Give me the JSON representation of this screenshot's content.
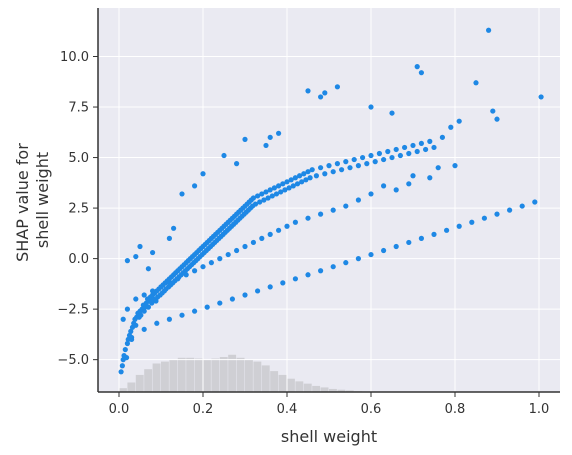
{
  "chart_data": {
    "type": "scatter",
    "title": "",
    "xlabel": "shell weight",
    "ylabel_line1": "SHAP value for",
    "ylabel_line2": "shell weight",
    "xlim": [
      -0.05,
      1.05
    ],
    "ylim": [
      -6.6,
      12.4
    ],
    "grid": true,
    "colors": {
      "background": "#eaeaf2",
      "grid": "#ffffff",
      "points": "#1e88e5",
      "histogram": "#cfcfd4",
      "axis": "#333333"
    },
    "x_ticks": [
      0.0,
      0.2,
      0.4,
      0.6,
      0.8,
      1.0
    ],
    "x_tick_labels": [
      "0.0",
      "0.2",
      "0.4",
      "0.6",
      "0.8",
      "1.0"
    ],
    "y_ticks": [
      -5.0,
      -2.5,
      0.0,
      2.5,
      5.0,
      7.5,
      10.0
    ],
    "y_tick_labels": [
      "−5.0",
      "−2.5",
      "0.0",
      "2.5",
      "5.0",
      "7.5",
      "10.0"
    ],
    "histogram": {
      "bin_starts": [
        0.0,
        0.02,
        0.04,
        0.06,
        0.08,
        0.1,
        0.12,
        0.14,
        0.16,
        0.18,
        0.2,
        0.22,
        0.24,
        0.26,
        0.28,
        0.3,
        0.32,
        0.34,
        0.36,
        0.38,
        0.4,
        0.42,
        0.44,
        0.46,
        0.48,
        0.5,
        0.52,
        0.54,
        0.56
      ],
      "bin_width": 0.02,
      "relative_heights": [
        0.1,
        0.25,
        0.45,
        0.6,
        0.75,
        0.8,
        0.85,
        0.9,
        0.9,
        0.88,
        0.85,
        0.88,
        0.92,
        0.98,
        0.9,
        0.85,
        0.8,
        0.7,
        0.55,
        0.45,
        0.35,
        0.28,
        0.22,
        0.16,
        0.12,
        0.08,
        0.06,
        0.04,
        0.02
      ]
    },
    "points": [
      [
        0.005,
        -5.6
      ],
      [
        0.008,
        -5.3
      ],
      [
        0.01,
        -5.0
      ],
      [
        0.012,
        -4.8
      ],
      [
        0.015,
        -4.5
      ],
      [
        0.018,
        -4.9
      ],
      [
        0.02,
        -4.2
      ],
      [
        0.022,
        -4.0
      ],
      [
        0.025,
        -3.8
      ],
      [
        0.028,
        -3.6
      ],
      [
        0.03,
        -3.9
      ],
      [
        0.032,
        -3.4
      ],
      [
        0.035,
        -3.2
      ],
      [
        0.038,
        -3.0
      ],
      [
        0.04,
        -3.3
      ],
      [
        0.042,
        -2.9
      ],
      [
        0.045,
        -2.7
      ],
      [
        0.048,
        -2.9
      ],
      [
        0.05,
        -2.6
      ],
      [
        0.052,
        -2.8
      ],
      [
        0.055,
        -2.5
      ],
      [
        0.058,
        -2.3
      ],
      [
        0.06,
        -2.6
      ],
      [
        0.062,
        -2.4
      ],
      [
        0.065,
        -2.2
      ],
      [
        0.068,
        -2.0
      ],
      [
        0.07,
        -2.4
      ],
      [
        0.072,
        -2.1
      ],
      [
        0.075,
        -1.9
      ],
      [
        0.078,
        -2.2
      ],
      [
        0.08,
        -1.8
      ],
      [
        0.082,
        -2.0
      ],
      [
        0.085,
        -1.7
      ],
      [
        0.088,
        -2.1
      ],
      [
        0.09,
        -1.6
      ],
      [
        0.092,
        -1.9
      ],
      [
        0.095,
        -1.5
      ],
      [
        0.098,
        -1.8
      ],
      [
        0.1,
        -1.4
      ],
      [
        0.103,
        -1.7
      ],
      [
        0.105,
        -1.3
      ],
      [
        0.108,
        -1.6
      ],
      [
        0.11,
        -1.2
      ],
      [
        0.112,
        -1.5
      ],
      [
        0.115,
        -1.1
      ],
      [
        0.118,
        -1.4
      ],
      [
        0.12,
        -1.0
      ],
      [
        0.123,
        -1.3
      ],
      [
        0.125,
        -0.9
      ],
      [
        0.128,
        -1.2
      ],
      [
        0.13,
        -0.8
      ],
      [
        0.133,
        -1.1
      ],
      [
        0.135,
        -0.7
      ],
      [
        0.138,
        -1.0
      ],
      [
        0.14,
        -0.6
      ],
      [
        0.143,
        -0.9
      ],
      [
        0.145,
        -0.5
      ],
      [
        0.148,
        -0.8
      ],
      [
        0.15,
        -0.4
      ],
      [
        0.153,
        -0.7
      ],
      [
        0.155,
        -0.3
      ],
      [
        0.158,
        -0.6
      ],
      [
        0.16,
        -0.2
      ],
      [
        0.163,
        -0.5
      ],
      [
        0.165,
        -0.1
      ],
      [
        0.168,
        -0.4
      ],
      [
        0.17,
        0.0
      ],
      [
        0.173,
        -0.3
      ],
      [
        0.175,
        0.1
      ],
      [
        0.178,
        -0.2
      ],
      [
        0.18,
        0.2
      ],
      [
        0.183,
        -0.1
      ],
      [
        0.185,
        0.3
      ],
      [
        0.188,
        0.0
      ],
      [
        0.19,
        0.4
      ],
      [
        0.193,
        0.1
      ],
      [
        0.195,
        0.5
      ],
      [
        0.198,
        0.2
      ],
      [
        0.2,
        0.6
      ],
      [
        0.203,
        0.3
      ],
      [
        0.205,
        0.7
      ],
      [
        0.208,
        0.4
      ],
      [
        0.21,
        0.8
      ],
      [
        0.213,
        0.5
      ],
      [
        0.215,
        0.9
      ],
      [
        0.218,
        0.6
      ],
      [
        0.22,
        1.0
      ],
      [
        0.223,
        0.7
      ],
      [
        0.225,
        1.1
      ],
      [
        0.228,
        0.8
      ],
      [
        0.23,
        1.2
      ],
      [
        0.233,
        0.9
      ],
      [
        0.235,
        1.3
      ],
      [
        0.238,
        1.0
      ],
      [
        0.24,
        1.4
      ],
      [
        0.243,
        1.1
      ],
      [
        0.245,
        1.5
      ],
      [
        0.248,
        1.2
      ],
      [
        0.25,
        1.6
      ],
      [
        0.253,
        1.3
      ],
      [
        0.255,
        1.7
      ],
      [
        0.258,
        1.4
      ],
      [
        0.26,
        1.8
      ],
      [
        0.263,
        1.5
      ],
      [
        0.265,
        1.9
      ],
      [
        0.268,
        1.6
      ],
      [
        0.27,
        2.0
      ],
      [
        0.273,
        1.7
      ],
      [
        0.275,
        2.1
      ],
      [
        0.278,
        1.8
      ],
      [
        0.28,
        2.2
      ],
      [
        0.283,
        1.9
      ],
      [
        0.285,
        2.3
      ],
      [
        0.288,
        2.0
      ],
      [
        0.29,
        2.4
      ],
      [
        0.293,
        2.1
      ],
      [
        0.295,
        2.5
      ],
      [
        0.298,
        2.2
      ],
      [
        0.3,
        2.6
      ],
      [
        0.303,
        2.3
      ],
      [
        0.305,
        2.7
      ],
      [
        0.308,
        2.4
      ],
      [
        0.31,
        2.8
      ],
      [
        0.313,
        2.5
      ],
      [
        0.315,
        2.9
      ],
      [
        0.318,
        2.6
      ],
      [
        0.32,
        3.0
      ],
      [
        0.325,
        2.7
      ],
      [
        0.33,
        3.1
      ],
      [
        0.335,
        2.8
      ],
      [
        0.34,
        3.2
      ],
      [
        0.345,
        2.9
      ],
      [
        0.35,
        3.3
      ],
      [
        0.355,
        3.0
      ],
      [
        0.36,
        3.4
      ],
      [
        0.365,
        3.1
      ],
      [
        0.37,
        3.5
      ],
      [
        0.375,
        3.2
      ],
      [
        0.38,
        3.6
      ],
      [
        0.385,
        3.3
      ],
      [
        0.39,
        3.7
      ],
      [
        0.395,
        3.4
      ],
      [
        0.4,
        3.8
      ],
      [
        0.405,
        3.5
      ],
      [
        0.41,
        3.9
      ],
      [
        0.415,
        3.6
      ],
      [
        0.42,
        4.0
      ],
      [
        0.425,
        3.7
      ],
      [
        0.43,
        4.1
      ],
      [
        0.435,
        3.8
      ],
      [
        0.44,
        4.2
      ],
      [
        0.445,
        3.9
      ],
      [
        0.45,
        4.3
      ],
      [
        0.455,
        4.0
      ],
      [
        0.46,
        4.4
      ],
      [
        0.47,
        4.1
      ],
      [
        0.48,
        4.5
      ],
      [
        0.49,
        4.2
      ],
      [
        0.5,
        4.6
      ],
      [
        0.51,
        4.3
      ],
      [
        0.52,
        4.7
      ],
      [
        0.53,
        4.4
      ],
      [
        0.54,
        4.8
      ],
      [
        0.55,
        4.5
      ],
      [
        0.56,
        4.9
      ],
      [
        0.57,
        4.6
      ],
      [
        0.58,
        5.0
      ],
      [
        0.59,
        4.7
      ],
      [
        0.6,
        5.1
      ],
      [
        0.61,
        4.8
      ],
      [
        0.62,
        5.2
      ],
      [
        0.63,
        4.9
      ],
      [
        0.64,
        5.3
      ],
      [
        0.65,
        5.0
      ],
      [
        0.66,
        5.4
      ],
      [
        0.67,
        5.1
      ],
      [
        0.68,
        5.5
      ],
      [
        0.69,
        5.2
      ],
      [
        0.7,
        5.6
      ],
      [
        0.71,
        5.3
      ],
      [
        0.72,
        5.7
      ],
      [
        0.73,
        5.4
      ],
      [
        0.74,
        5.8
      ],
      [
        0.75,
        5.5
      ],
      [
        0.77,
        6.0
      ],
      [
        0.79,
        6.5
      ],
      [
        0.81,
        6.8
      ],
      [
        0.85,
        8.7
      ],
      [
        0.88,
        11.3
      ],
      [
        0.89,
        7.3
      ],
      [
        0.9,
        6.9
      ],
      [
        1.005,
        8.0
      ],
      [
        0.71,
        9.5
      ],
      [
        0.72,
        9.2
      ],
      [
        0.6,
        7.5
      ],
      [
        0.65,
        7.2
      ],
      [
        0.52,
        8.5
      ],
      [
        0.49,
        8.2
      ],
      [
        0.48,
        8.0
      ],
      [
        0.45,
        8.3
      ],
      [
        0.36,
        6.0
      ],
      [
        0.38,
        6.2
      ],
      [
        0.35,
        5.6
      ],
      [
        0.3,
        5.9
      ],
      [
        0.25,
        5.1
      ],
      [
        0.28,
        4.7
      ],
      [
        0.2,
        4.2
      ],
      [
        0.18,
        3.6
      ],
      [
        0.15,
        3.2
      ],
      [
        0.12,
        1.0
      ],
      [
        0.13,
        1.5
      ],
      [
        0.08,
        0.3
      ],
      [
        0.05,
        0.6
      ],
      [
        0.02,
        -0.1
      ],
      [
        0.04,
        0.1
      ],
      [
        0.07,
        -0.5
      ],
      [
        0.76,
        4.5
      ],
      [
        0.8,
        4.6
      ],
      [
        0.74,
        4.0
      ],
      [
        0.7,
        4.1
      ],
      [
        0.69,
        3.7
      ],
      [
        0.66,
        3.4
      ],
      [
        0.63,
        3.6
      ],
      [
        0.6,
        3.2
      ],
      [
        0.57,
        2.9
      ],
      [
        0.54,
        2.6
      ],
      [
        0.51,
        2.4
      ],
      [
        0.48,
        2.2
      ],
      [
        0.45,
        2.0
      ],
      [
        0.42,
        1.8
      ],
      [
        0.4,
        1.6
      ],
      [
        0.38,
        1.4
      ],
      [
        0.36,
        1.2
      ],
      [
        0.34,
        1.0
      ],
      [
        0.32,
        0.8
      ],
      [
        0.3,
        0.6
      ],
      [
        0.28,
        0.4
      ],
      [
        0.26,
        0.2
      ],
      [
        0.24,
        0.0
      ],
      [
        0.22,
        -0.2
      ],
      [
        0.2,
        -0.4
      ],
      [
        0.18,
        -0.6
      ],
      [
        0.16,
        -0.8
      ],
      [
        0.14,
        -1.0
      ],
      [
        0.12,
        -1.2
      ],
      [
        0.1,
        -1.4
      ],
      [
        0.08,
        -1.6
      ],
      [
        0.06,
        -1.8
      ],
      [
        0.04,
        -2.0
      ],
      [
        0.02,
        -2.5
      ],
      [
        0.01,
        -3.0
      ],
      [
        0.03,
        -4.0
      ],
      [
        0.06,
        -3.5
      ],
      [
        0.09,
        -3.2
      ],
      [
        0.12,
        -3.0
      ],
      [
        0.15,
        -2.8
      ],
      [
        0.18,
        -2.6
      ],
      [
        0.21,
        -2.4
      ],
      [
        0.24,
        -2.2
      ],
      [
        0.27,
        -2.0
      ],
      [
        0.3,
        -1.8
      ],
      [
        0.33,
        -1.6
      ],
      [
        0.36,
        -1.4
      ],
      [
        0.39,
        -1.2
      ],
      [
        0.42,
        -1.0
      ],
      [
        0.45,
        -0.8
      ],
      [
        0.48,
        -0.6
      ],
      [
        0.51,
        -0.4
      ],
      [
        0.54,
        -0.2
      ],
      [
        0.57,
        0.0
      ],
      [
        0.6,
        0.2
      ],
      [
        0.63,
        0.4
      ],
      [
        0.66,
        0.6
      ],
      [
        0.69,
        0.8
      ],
      [
        0.72,
        1.0
      ],
      [
        0.75,
        1.2
      ],
      [
        0.78,
        1.4
      ],
      [
        0.81,
        1.6
      ],
      [
        0.84,
        1.8
      ],
      [
        0.87,
        2.0
      ],
      [
        0.9,
        2.2
      ],
      [
        0.93,
        2.4
      ],
      [
        0.96,
        2.6
      ],
      [
        0.99,
        2.8
      ]
    ]
  }
}
